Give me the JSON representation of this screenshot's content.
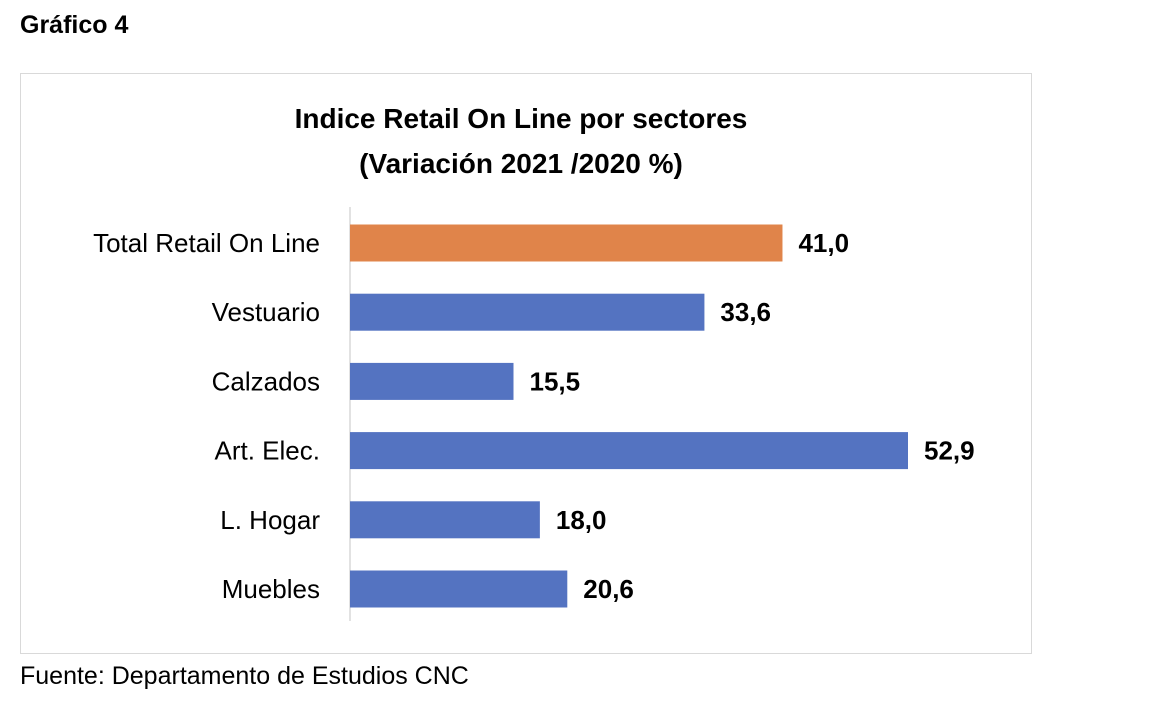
{
  "heading": "Gráfico 4",
  "source": "Fuente: Departamento de Estudios CNC",
  "chart_data": {
    "type": "bar",
    "orientation": "horizontal",
    "title_lines": [
      "Indice Retail On Line por sectores",
      "(Variación 2021 /2020 %)"
    ],
    "categories": [
      "Total Retail On Line",
      "Vestuario",
      "Calzados",
      "Art. Elec.",
      "L. Hogar",
      "Muebles"
    ],
    "values": [
      41.0,
      33.6,
      15.5,
      52.9,
      18.0,
      20.6
    ],
    "value_labels": [
      "41,0",
      "33,6",
      "15,5",
      "52,9",
      "18,0",
      "20,6"
    ],
    "colors": [
      "#E0844A",
      "#5473C1",
      "#5473C1",
      "#5473C1",
      "#5473C1",
      "#5473C1"
    ],
    "xlim": [
      0,
      52.9
    ],
    "grid": false,
    "legend": "none"
  }
}
